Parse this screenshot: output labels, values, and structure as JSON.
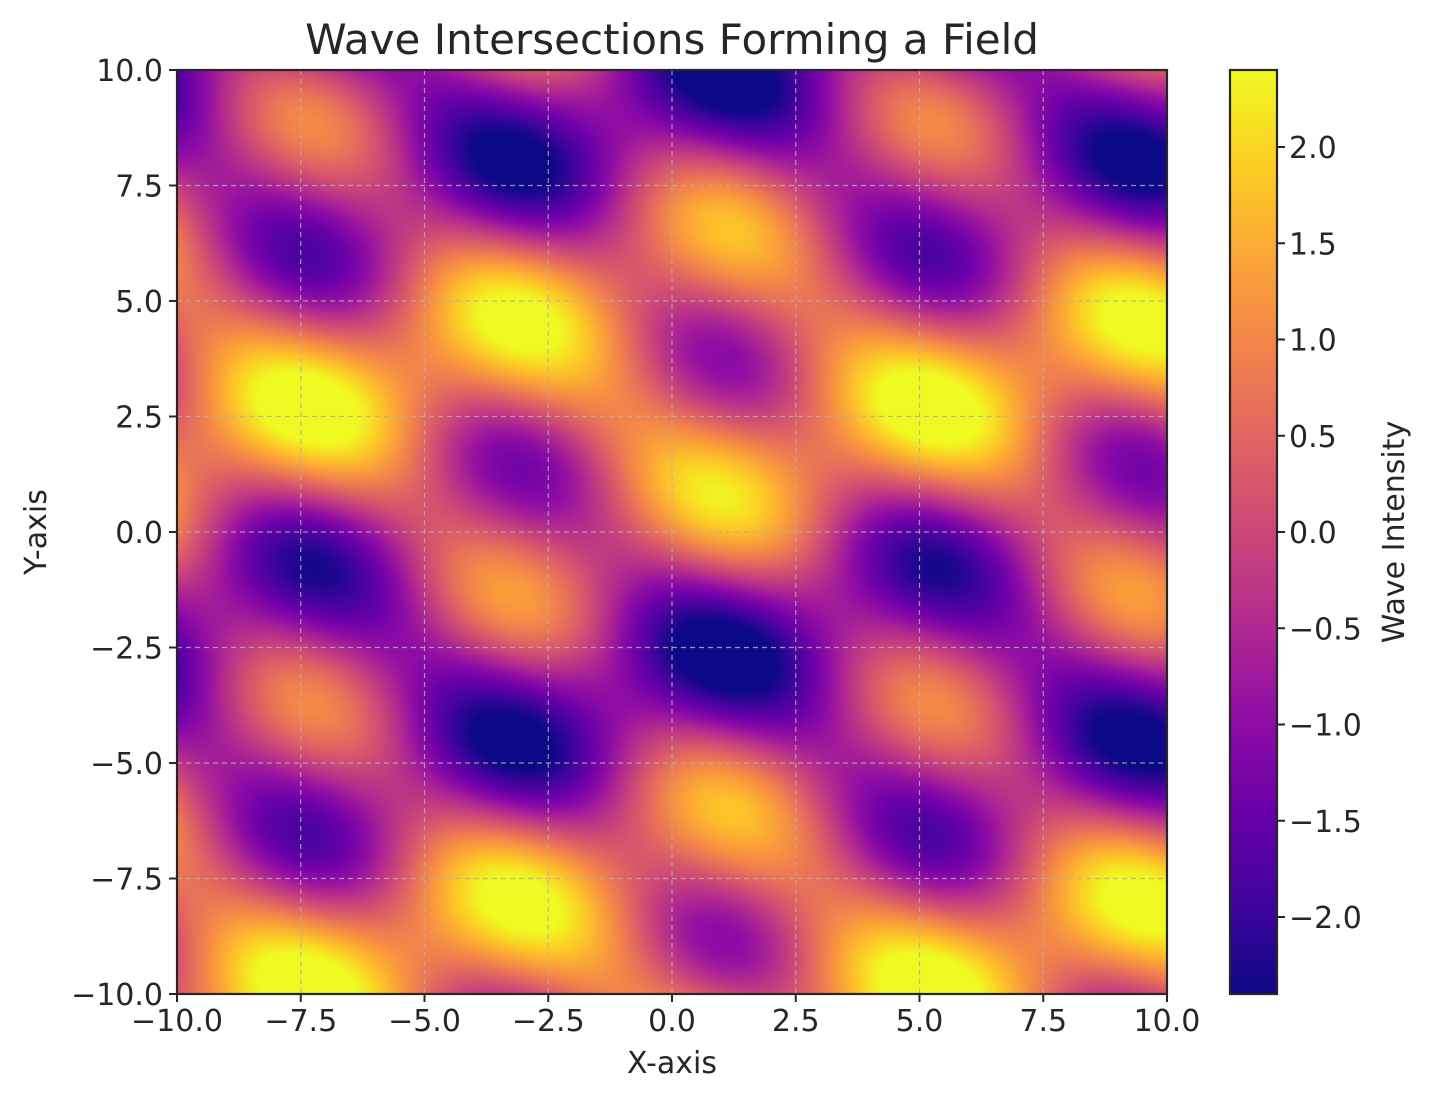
{
  "chart_data": {
    "type": "heatmap",
    "title": "Wave Intersections Forming a Field",
    "xlabel": "X-axis",
    "ylabel": "Y-axis",
    "xlim": [
      -10,
      10
    ],
    "ylim": [
      -10,
      10
    ],
    "x_ticks": [
      -10,
      -7.5,
      -5,
      -2.5,
      0,
      2.5,
      5,
      7.5,
      10
    ],
    "x_tick_labels": [
      "−10.0",
      "−7.5",
      "−5.0",
      "−2.5",
      "0.0",
      "2.5",
      "5.0",
      "7.5",
      "10.0"
    ],
    "y_ticks": [
      -10,
      -7.5,
      -5,
      -2.5,
      0,
      2.5,
      5,
      7.5,
      10
    ],
    "y_tick_labels": [
      "−10.0",
      "−7.5",
      "−5.0",
      "−2.5",
      "0.0",
      "2.5",
      "5.0",
      "7.5",
      "10.0"
    ],
    "grid": true,
    "colormap": "plasma",
    "colorbar": {
      "label": "Wave Intensity",
      "range": [
        -2.4,
        2.4
      ],
      "ticks": [
        -2.0,
        -1.5,
        -1.0,
        -0.5,
        0.0,
        0.5,
        1.0,
        1.5,
        2.0
      ],
      "tick_labels": [
        "−2.0",
        "−1.5",
        "−1.0",
        "−0.5",
        "0.0",
        "0.5",
        "1.0",
        "1.5",
        "2.0"
      ]
    },
    "field": {
      "formula": "sin(x + y) + cos(0.5*x - y) + sin(0.5*y)",
      "grid_step": 0.1
    }
  }
}
